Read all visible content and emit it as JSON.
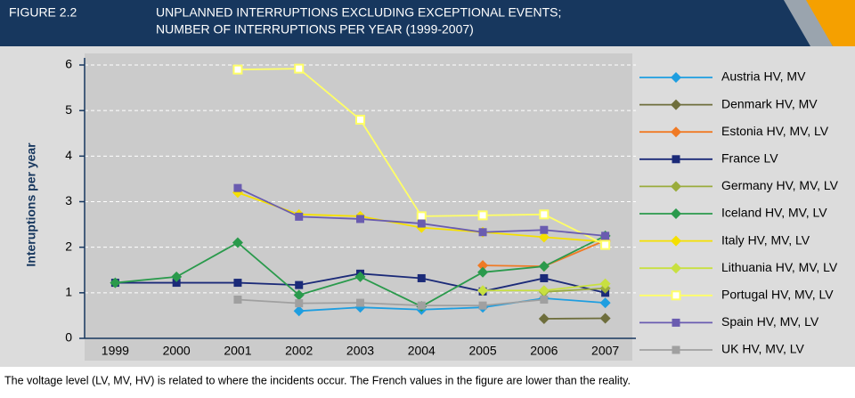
{
  "header": {
    "figure": "FIGURE 2.2",
    "title_lines": [
      "UNPLANNED INTERRUPTIONS EXCLUDING EXCEPTIONAL EVENTS;",
      "NUMBER OF INTERRUPTIONS PER YEAR (1999-2007)"
    ]
  },
  "chart_data": {
    "type": "line",
    "ylabel": "Interuptions per year",
    "categories": [
      "1999",
      "2000",
      "2001",
      "2002",
      "2003",
      "2004",
      "2005",
      "2006",
      "2007"
    ],
    "ylim": [
      0,
      6
    ],
    "yticks": [
      0,
      1,
      2,
      3,
      4,
      5,
      6
    ],
    "grid": true,
    "legend": "right",
    "series": [
      {
        "name": "Austria HV, MV",
        "color": "#1e9ee0",
        "marker": "diamond",
        "values": [
          null,
          null,
          null,
          0.6,
          0.68,
          0.63,
          0.68,
          0.88,
          0.78
        ]
      },
      {
        "name": "Denmark HV, MV",
        "color": "#6e6e3c",
        "marker": "diamond",
        "values": [
          null,
          null,
          null,
          null,
          null,
          null,
          null,
          0.43,
          0.44
        ]
      },
      {
        "name": "Estonia HV, MV, LV",
        "color": "#f07a24",
        "marker": "diamond",
        "values": [
          null,
          null,
          null,
          null,
          null,
          null,
          1.6,
          1.58,
          2.15
        ]
      },
      {
        "name": "France LV",
        "color": "#1b2a78",
        "marker": "square",
        "values": [
          1.22,
          1.22,
          1.22,
          1.17,
          1.42,
          1.32,
          1.03,
          1.32,
          1.0
        ]
      },
      {
        "name": "Germany HV, MV, LV",
        "color": "#9aac3c",
        "marker": "diamond",
        "values": [
          null,
          null,
          null,
          null,
          null,
          null,
          null,
          1.02,
          1.1
        ]
      },
      {
        "name": "Iceland HV, MV, LV",
        "color": "#2a9a4c",
        "marker": "diamond",
        "values": [
          1.22,
          1.35,
          2.1,
          0.95,
          1.35,
          0.7,
          1.45,
          1.58,
          2.25
        ]
      },
      {
        "name": "Italy HV, MV, LV",
        "color": "#f5e000",
        "marker": "diamond",
        "values": [
          null,
          null,
          3.2,
          2.72,
          2.68,
          2.43,
          2.33,
          2.22,
          2.12
        ]
      },
      {
        "name": "Lithuania HV, MV, LV",
        "color": "#c8e040",
        "marker": "diamond",
        "values": [
          null,
          null,
          null,
          null,
          null,
          null,
          1.05,
          1.05,
          1.2
        ]
      },
      {
        "name": "Portugal HV, MV, LV",
        "color": "#ffff66",
        "marker": "square-open",
        "values": [
          null,
          null,
          5.9,
          5.92,
          4.8,
          2.68,
          2.7,
          2.72,
          2.05
        ]
      },
      {
        "name": "Spain HV, MV, LV",
        "color": "#6a5cb0",
        "marker": "square",
        "values": [
          null,
          null,
          3.3,
          2.67,
          2.62,
          2.52,
          2.33,
          2.38,
          2.25
        ]
      },
      {
        "name": "UK HV, MV, LV",
        "color": "#a0a0a0",
        "marker": "square",
        "values": [
          null,
          null,
          0.85,
          0.77,
          0.78,
          0.72,
          0.72,
          0.85,
          null
        ]
      }
    ]
  },
  "footnote": "The voltage level (LV, MV, HV) is related to where the incidents occur. The French values in the figure are lower than the reality."
}
